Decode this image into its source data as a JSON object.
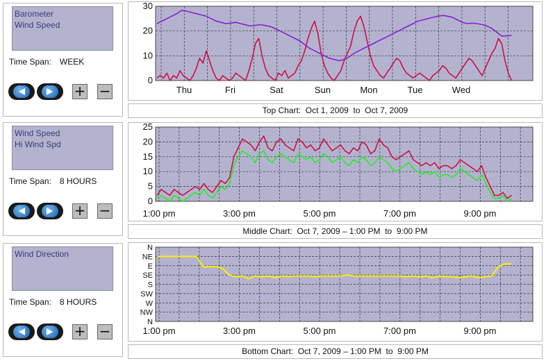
{
  "panels": [
    {
      "list": [
        "Barometer",
        "Wind Speed"
      ],
      "timespan_label": "Time Span:",
      "timespan_value": "WEEK"
    },
    {
      "list": [
        "Wind Speed",
        "Hi Wind Spd"
      ],
      "timespan_label": "Time Span:",
      "timespan_value": "8 HOURS"
    },
    {
      "list": [
        "Wind Direction"
      ],
      "timespan_label": "Time Span:",
      "timespan_value": "8 HOURS"
    }
  ],
  "buttons": {
    "plus": "+",
    "minus": "−"
  },
  "colors": {
    "plot_bg": "#b4b3cf",
    "wind_speed": "#cc1044",
    "hi_wind": "#22ee22",
    "barometer": "#8a1fd0",
    "direction": "#ffee00"
  },
  "chart_data": [
    {
      "type": "line",
      "caption": "Top Chart:  Oct 1, 2009  to  Oct 7, 2009",
      "x_tick_labels": [
        "Thu",
        "Fri",
        "Sat",
        "Sun",
        "Mon",
        "Tue",
        "Wed"
      ],
      "y_tick_labels": [
        "0",
        "10",
        "20",
        "30"
      ],
      "ylim": [
        0,
        30
      ],
      "grid": true,
      "series": [
        {
          "values": [
            1,
            2,
            1,
            3,
            0,
            2,
            1,
            4,
            2,
            1,
            0,
            2,
            5,
            9,
            7,
            12,
            8,
            4,
            1,
            0,
            2,
            1,
            0,
            1,
            3,
            2,
            1,
            0,
            4,
            9,
            15,
            17,
            10,
            5,
            2,
            1,
            0,
            3,
            2,
            4,
            1,
            2,
            3,
            6,
            8,
            12,
            17,
            21,
            24,
            19,
            11,
            6,
            3,
            1,
            0,
            2,
            4,
            8,
            11,
            14,
            20,
            24,
            26,
            22,
            16,
            10,
            6,
            4,
            2,
            1,
            3,
            5,
            7,
            9,
            8,
            5,
            3,
            2,
            1,
            2,
            3,
            2,
            1,
            0,
            2,
            3,
            4,
            6,
            5,
            3,
            2,
            1,
            3,
            5,
            7,
            9,
            8,
            6,
            4,
            2,
            5,
            8,
            11,
            13,
            17,
            15,
            8,
            3,
            0
          ]
        },
        {
          "values": [
            23,
            24,
            25,
            26,
            27,
            28.3,
            28,
            27.5,
            27,
            26.5,
            26,
            25,
            24,
            23.5,
            23,
            23.2,
            23.5,
            23,
            22.5,
            22,
            22.3,
            22.6,
            22.2,
            21.8,
            21,
            20,
            19,
            18,
            17,
            16,
            14.5,
            13,
            12,
            11,
            10,
            9,
            8.5,
            8,
            8.5,
            9.5,
            11,
            12,
            13,
            14,
            15,
            16,
            17,
            18,
            19,
            20,
            21,
            22,
            23,
            24,
            24.5,
            25,
            25.5,
            26,
            26.3,
            26,
            25.5,
            24.5,
            23.5,
            23,
            23.2,
            23,
            22.6,
            22,
            21,
            19.5,
            18,
            18,
            18.2
          ]
        }
      ]
    },
    {
      "type": "line",
      "caption": "Middle Chart:  Oct 7, 2009 – 1:00 PM  to  9:00 PM",
      "x_tick_labels": [
        "1:00 pm",
        "3:00 pm",
        "5:00 pm",
        "7:00 pm",
        "9:00 pm"
      ],
      "y_tick_labels": [
        "0",
        "5",
        "10",
        "15",
        "20",
        "25"
      ],
      "ylim": [
        0,
        25
      ],
      "grid": true,
      "series": [
        {
          "values": [
            1,
            2,
            1,
            0,
            2,
            1,
            0,
            1,
            2,
            3,
            2,
            4,
            2,
            1,
            3,
            5,
            4,
            6,
            12,
            15,
            17,
            16,
            15,
            13,
            16,
            17,
            14,
            13,
            15,
            16,
            15,
            14,
            13,
            16,
            15,
            14,
            15,
            13,
            14,
            16,
            15,
            13,
            14,
            15,
            13,
            12,
            14,
            13,
            15,
            14,
            12,
            13,
            15,
            14,
            13,
            11,
            10,
            11,
            12,
            13,
            11,
            10,
            9,
            10,
            9,
            10,
            8,
            9,
            9,
            8,
            9,
            11,
            10,
            9,
            8,
            7,
            9,
            6,
            3,
            1,
            1,
            2,
            0,
            1
          ]
        },
        {
          "values": [
            2,
            4,
            3,
            2,
            4,
            3,
            2,
            3,
            4,
            5,
            4,
            6,
            4,
            3,
            5,
            7,
            6,
            8,
            15,
            18,
            21,
            20,
            19,
            17,
            20,
            22,
            18,
            17,
            20,
            21,
            19,
            18,
            17,
            21,
            20,
            18,
            19,
            17,
            18,
            21,
            19,
            17,
            18,
            19,
            17,
            16,
            18,
            17,
            20,
            19,
            16,
            17,
            21,
            19,
            18,
            15,
            14,
            15,
            16,
            17,
            14,
            13,
            12,
            13,
            12,
            13,
            11,
            12,
            12,
            11,
            12,
            14,
            13,
            12,
            11,
            10,
            12,
            8,
            5,
            2,
            2,
            3,
            1,
            2
          ]
        }
      ]
    },
    {
      "type": "line",
      "caption": "Bottom Chart:  Oct 7, 2009 – 1:00 PM  to  9:00 PM",
      "x_tick_labels": [
        "1:00 pm",
        "3:00 pm",
        "5:00 pm",
        "7:00 pm",
        "9:00 pm"
      ],
      "y_tick_labels": [
        "N",
        "NW",
        "W",
        "SW",
        "S",
        "SE",
        "E",
        "NE",
        "N"
      ],
      "grid": true,
      "series": [
        {
          "values": [
            1,
            1,
            1,
            1,
            1,
            1,
            1,
            2.1,
            2.1,
            2.1,
            2.3,
            3,
            3.2,
            3.1,
            3.4,
            3.1,
            3.2,
            3.1,
            3.3,
            3.1,
            3.2,
            3.1,
            3.1,
            3.1,
            3.2,
            3.1,
            3.1,
            3.1,
            3.1,
            3,
            3.1,
            3.1,
            3.1,
            3.1,
            3.1,
            3.1,
            3.1,
            3.1,
            3.2,
            3.1,
            3.2,
            3.1,
            3.3,
            3.1,
            3.2,
            3.2,
            3.3,
            3.2,
            3.1,
            3.3,
            3.2,
            3.1,
            2.1,
            1.8,
            1.8
          ]
        }
      ]
    }
  ]
}
